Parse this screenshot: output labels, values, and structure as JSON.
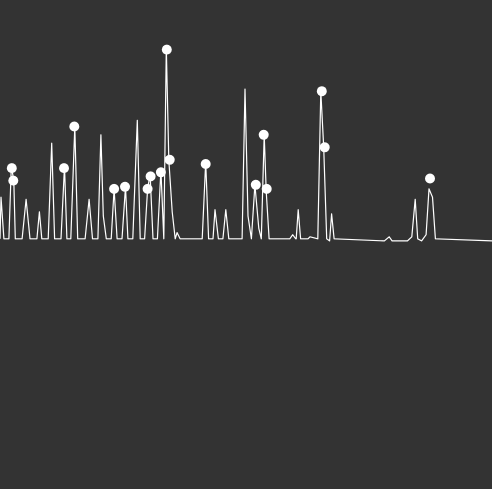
{
  "colors": {
    "background": "#333333",
    "trace": "#ffffff",
    "marker": "#ffffff"
  },
  "chart_data": {
    "type": "line",
    "title": "",
    "xlabel": "",
    "ylabel": "",
    "grid": false,
    "axes_visible": false,
    "xlim": [
      0,
      1
    ],
    "ylim": [
      0,
      1
    ],
    "baseline": 0.02,
    "series": [
      {
        "values": [
          [
            0.0,
            0.02
          ],
          [
            0.002,
            0.22
          ],
          [
            0.008,
            0.02
          ],
          [
            0.018,
            0.02
          ],
          [
            0.023,
            0.37
          ],
          [
            0.028,
            0.3
          ],
          [
            0.031,
            0.02
          ],
          [
            0.045,
            0.02
          ],
          [
            0.053,
            0.21
          ],
          [
            0.061,
            0.02
          ],
          [
            0.075,
            0.02
          ],
          [
            0.08,
            0.15
          ],
          [
            0.085,
            0.02
          ],
          [
            0.098,
            0.02
          ],
          [
            0.105,
            0.48
          ],
          [
            0.111,
            0.02
          ],
          [
            0.124,
            0.02
          ],
          [
            0.131,
            0.37
          ],
          [
            0.136,
            0.02
          ],
          [
            0.144,
            0.02
          ],
          [
            0.152,
            0.56
          ],
          [
            0.158,
            0.02
          ],
          [
            0.173,
            0.02
          ],
          [
            0.181,
            0.21
          ],
          [
            0.188,
            0.02
          ],
          [
            0.199,
            0.02
          ],
          [
            0.205,
            0.52
          ],
          [
            0.21,
            0.13
          ],
          [
            0.216,
            0.02
          ],
          [
            0.226,
            0.02
          ],
          [
            0.232,
            0.26
          ],
          [
            0.238,
            0.02
          ],
          [
            0.248,
            0.02
          ],
          [
            0.255,
            0.27
          ],
          [
            0.26,
            0.02
          ],
          [
            0.27,
            0.02
          ],
          [
            0.279,
            0.59
          ],
          [
            0.285,
            0.02
          ],
          [
            0.294,
            0.02
          ],
          [
            0.3,
            0.26
          ],
          [
            0.305,
            0.33
          ],
          [
            0.311,
            0.02
          ],
          [
            0.32,
            0.02
          ],
          [
            0.327,
            0.35
          ],
          [
            0.333,
            0.02
          ],
          [
            0.338,
            0.94
          ],
          [
            0.343,
            0.4
          ],
          [
            0.35,
            0.15
          ],
          [
            0.356,
            0.02
          ],
          [
            0.36,
            0.05
          ],
          [
            0.366,
            0.02
          ],
          [
            0.411,
            0.02
          ],
          [
            0.418,
            0.39
          ],
          [
            0.424,
            0.02
          ],
          [
            0.433,
            0.02
          ],
          [
            0.437,
            0.16
          ],
          [
            0.444,
            0.02
          ],
          [
            0.453,
            0.02
          ],
          [
            0.459,
            0.16
          ],
          [
            0.465,
            0.02
          ],
          [
            0.492,
            0.02
          ],
          [
            0.498,
            0.74
          ],
          [
            0.504,
            0.13
          ],
          [
            0.511,
            0.02
          ],
          [
            0.518,
            0.28
          ],
          [
            0.526,
            0.07
          ],
          [
            0.531,
            0.02
          ],
          [
            0.537,
            0.52
          ],
          [
            0.541,
            0.25
          ],
          [
            0.547,
            0.02
          ],
          [
            0.589,
            0.02
          ],
          [
            0.595,
            0.04
          ],
          [
            0.601,
            0.02
          ],
          [
            0.602,
            0.02
          ],
          [
            0.606,
            0.16
          ],
          [
            0.611,
            0.02
          ],
          [
            0.626,
            0.02
          ],
          [
            0.63,
            0.03
          ],
          [
            0.646,
            0.02
          ],
          [
            0.652,
            0.73
          ],
          [
            0.658,
            0.46
          ],
          [
            0.664,
            0.02
          ],
          [
            0.67,
            0.01
          ],
          [
            0.674,
            0.14
          ],
          [
            0.679,
            0.02
          ],
          [
            0.781,
            0.01
          ],
          [
            0.791,
            0.03
          ],
          [
            0.797,
            0.01
          ],
          [
            0.828,
            0.01
          ],
          [
            0.837,
            0.03
          ],
          [
            0.844,
            0.21
          ],
          [
            0.849,
            0.02
          ],
          [
            0.857,
            0.01
          ],
          [
            0.866,
            0.04
          ],
          [
            0.872,
            0.26
          ],
          [
            0.879,
            0.22
          ],
          [
            0.885,
            0.02
          ],
          [
            1.0,
            0.01
          ]
        ]
      }
    ],
    "markers": [
      [
        0.024,
        0.36
      ],
      [
        0.027,
        0.3
      ],
      [
        0.13,
        0.36
      ],
      [
        0.151,
        0.56
      ],
      [
        0.232,
        0.26
      ],
      [
        0.254,
        0.27
      ],
      [
        0.3,
        0.26
      ],
      [
        0.306,
        0.32
      ],
      [
        0.327,
        0.34
      ],
      [
        0.339,
        0.93
      ],
      [
        0.345,
        0.4
      ],
      [
        0.418,
        0.38
      ],
      [
        0.52,
        0.28
      ],
      [
        0.536,
        0.52
      ],
      [
        0.542,
        0.26
      ],
      [
        0.654,
        0.73
      ],
      [
        0.66,
        0.46
      ],
      [
        0.874,
        0.31
      ]
    ]
  }
}
